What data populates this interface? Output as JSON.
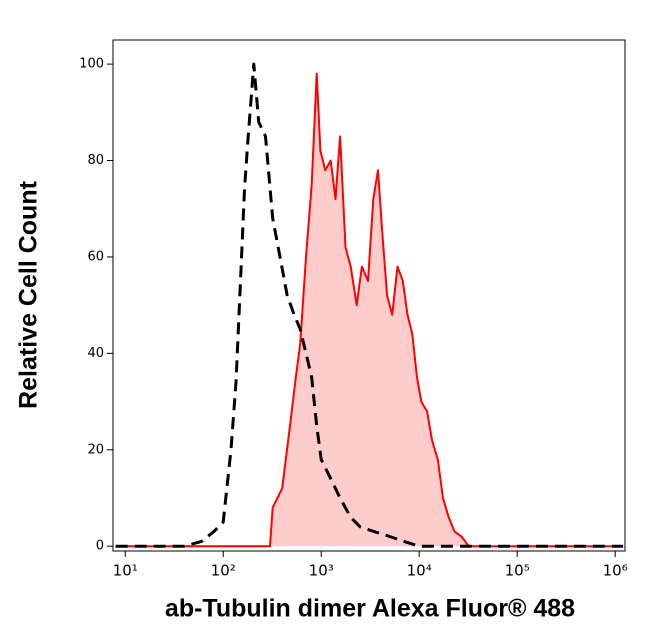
{
  "chart_data": {
    "type": "histogram-overlay",
    "xlabel": "ab-Tubulin dimer Alexa Fluor® 488",
    "ylabel": "Relative Cell Count",
    "xscale": "log",
    "xlim": [
      7.5,
      1260000
    ],
    "ylim": [
      -1,
      105
    ],
    "xticks": [
      {
        "value": 10,
        "label": "10¹"
      },
      {
        "value": 100,
        "label": "10²"
      },
      {
        "value": 1000,
        "label": "10³"
      },
      {
        "value": 10000,
        "label": "10⁴"
      },
      {
        "value": 100000,
        "label": "10⁵"
      },
      {
        "value": 1000000,
        "label": "10⁶"
      }
    ],
    "yticks": [
      0,
      20,
      40,
      60,
      80,
      100
    ],
    "series": [
      {
        "color": "#000000",
        "style": "dashed",
        "fill": null,
        "x": [
          8,
          40,
          60,
          80,
          100,
          120,
          135,
          150,
          165,
          180,
          205,
          230,
          270,
          320,
          380,
          450,
          530,
          610,
          700,
          800,
          900,
          1000,
          1250,
          1560,
          2000,
          2500,
          3500,
          5000,
          7000,
          10000,
          1200000
        ],
        "values": [
          0,
          0,
          1,
          3,
          5,
          20,
          34,
          55,
          74,
          85,
          100,
          88,
          85,
          68,
          60,
          52,
          48,
          45,
          40,
          35,
          25,
          18,
          14,
          10,
          6,
          4,
          3,
          2,
          1,
          0,
          0
        ]
      },
      {
        "color": "#ff0000",
        "style": "solid",
        "fill": "#ffcccc",
        "x": [
          8,
          300,
          320,
          400,
          480,
          550,
          610,
          700,
          800,
          900,
          980,
          1100,
          1250,
          1400,
          1560,
          1770,
          2000,
          2300,
          2600,
          3000,
          3400,
          3800,
          4200,
          4700,
          5300,
          6000,
          6800,
          7600,
          8500,
          9500,
          10500,
          12000,
          13500,
          15500,
          17500,
          20000,
          23000,
          27000,
          32000,
          40000,
          1200000
        ],
        "values": [
          0,
          0,
          8,
          12,
          25,
          35,
          42,
          60,
          75,
          98,
          82,
          78,
          80,
          72,
          85,
          62,
          58,
          50,
          58,
          55,
          72,
          78,
          65,
          52,
          48,
          58,
          55,
          48,
          44,
          35,
          30,
          28,
          22,
          18,
          10,
          6,
          3,
          2,
          0,
          0,
          0
        ]
      }
    ]
  }
}
